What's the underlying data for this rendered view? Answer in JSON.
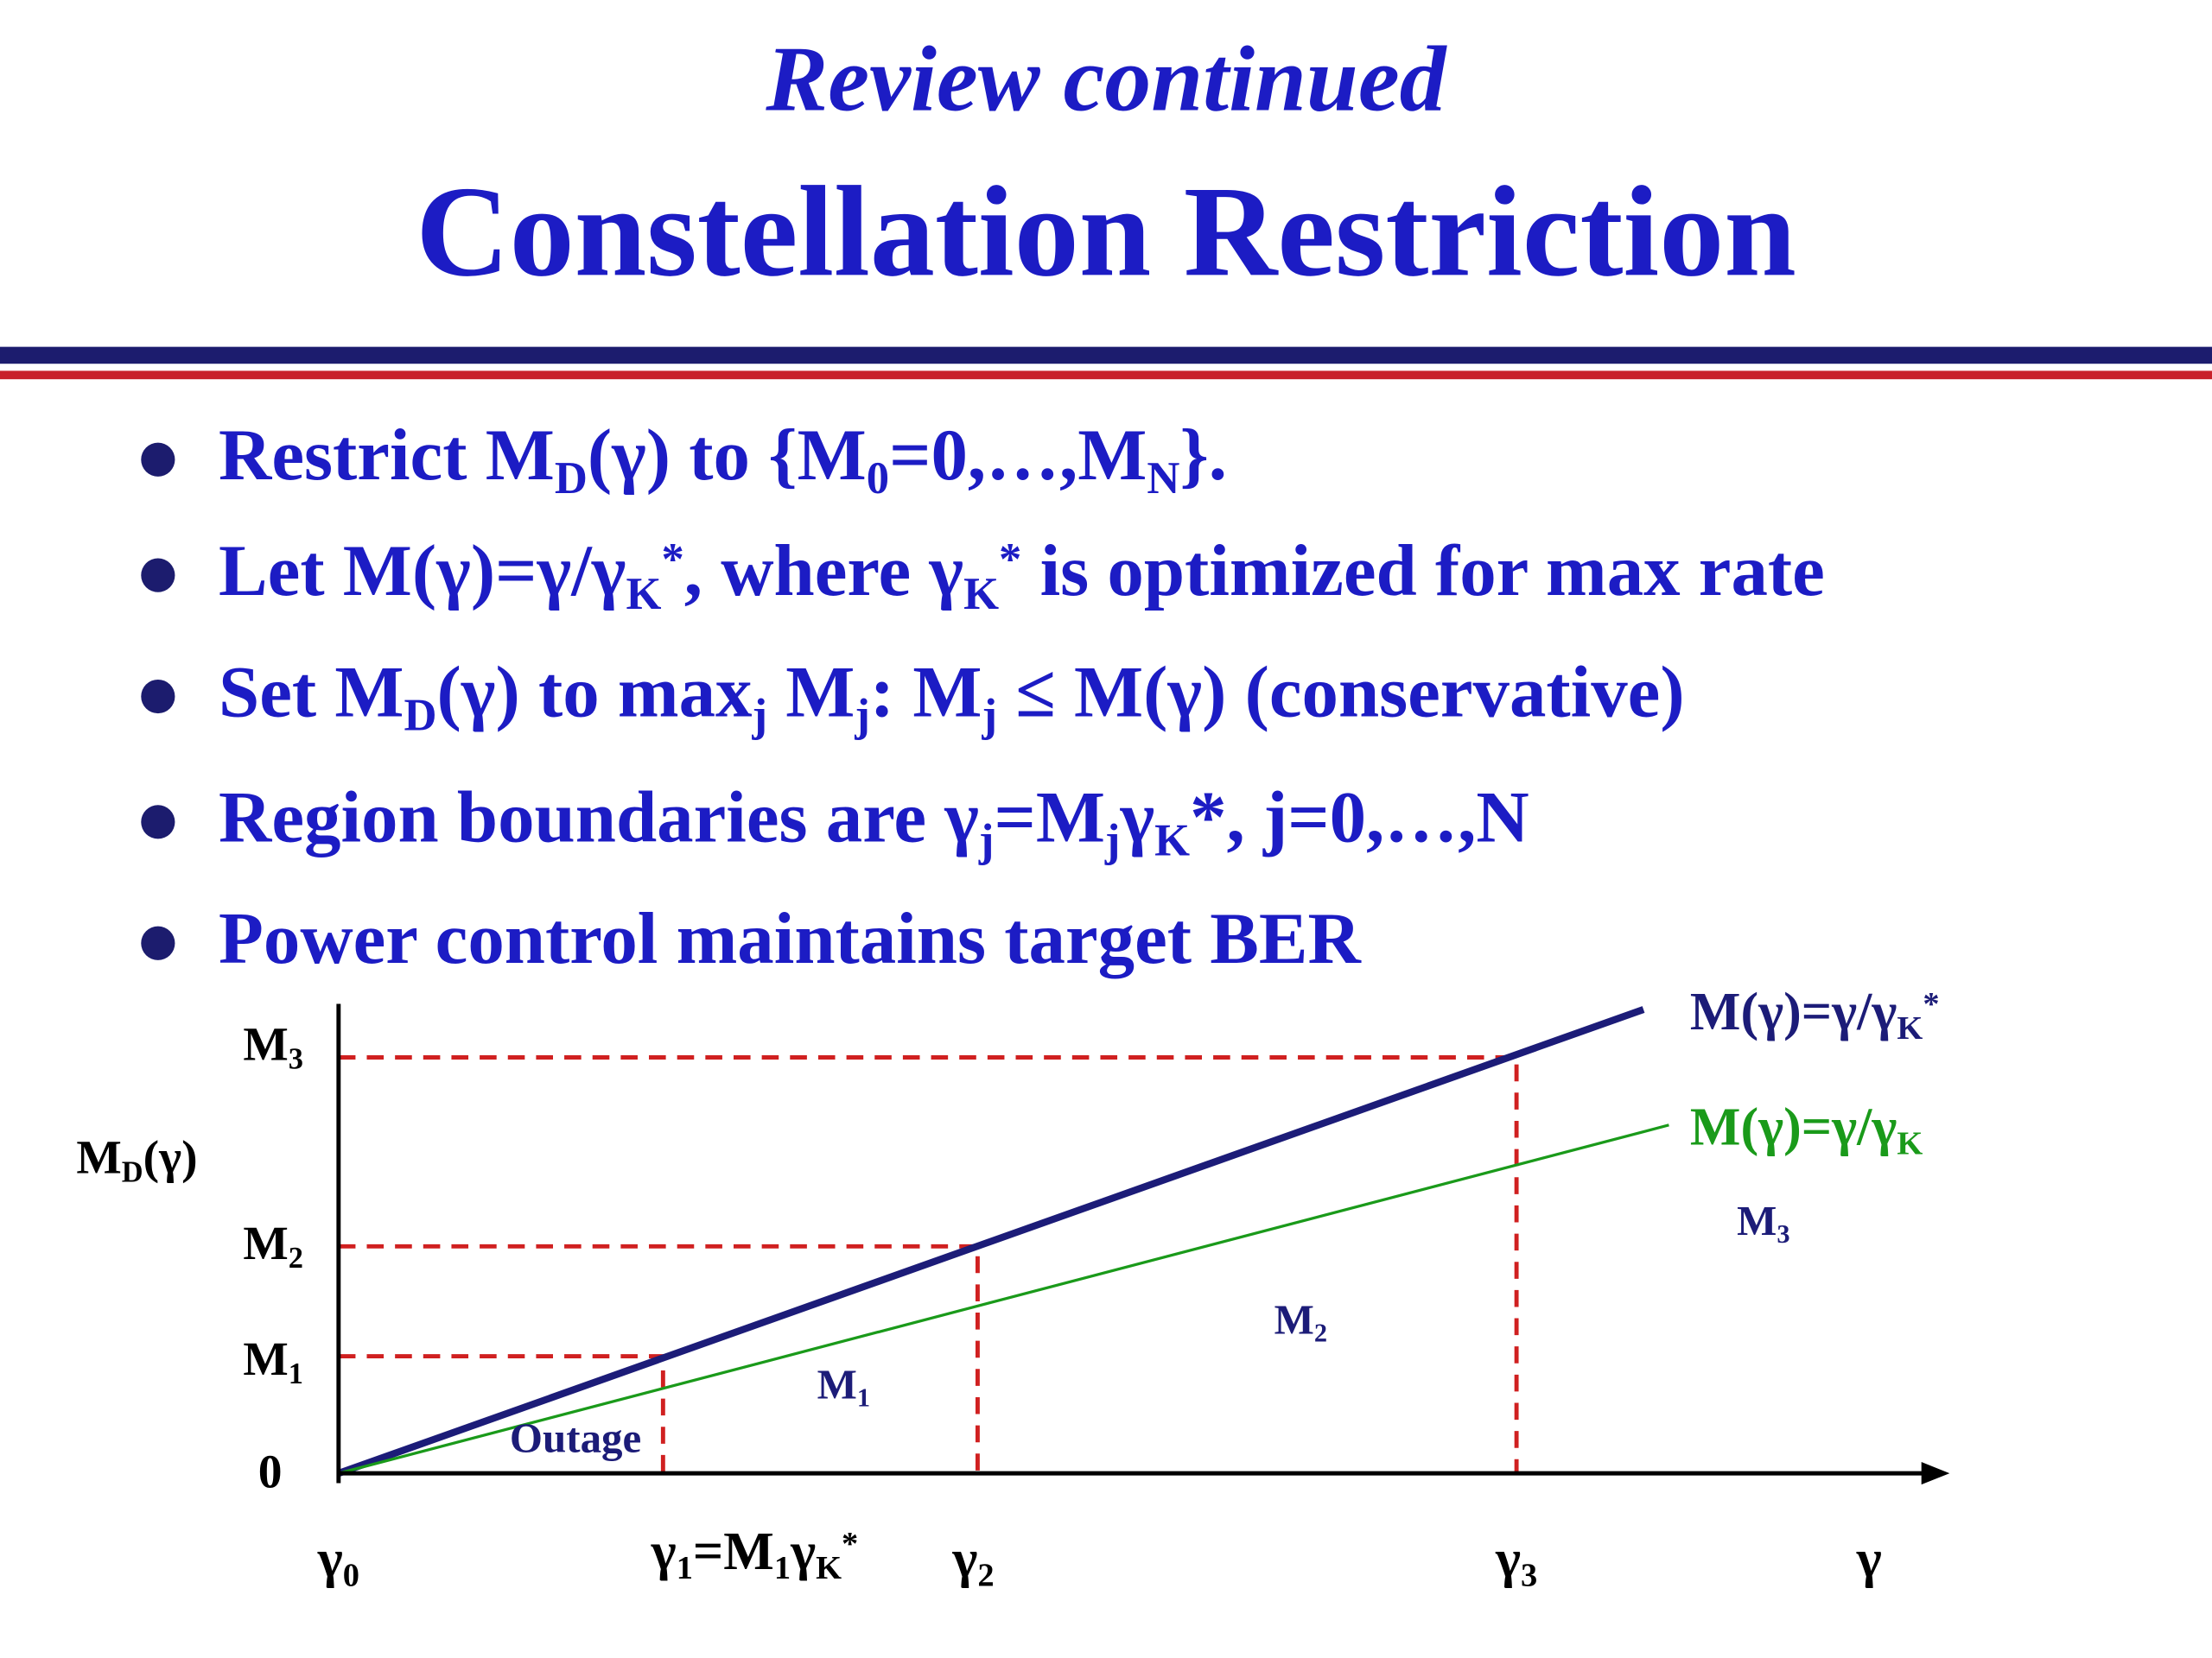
{
  "header": {
    "subtitle": "Review continued",
    "title": "Constellation Restriction"
  },
  "bullets": [
    [
      {
        "text": "Restrict M"
      },
      {
        "sub": "D"
      },
      {
        "text": "(γ) to {M"
      },
      {
        "sub": "0"
      },
      {
        "text": "=0,…,M"
      },
      {
        "sub": "N"
      },
      {
        "text": "}."
      }
    ],
    [
      {
        "text": "Let M(γ)=γ/γ"
      },
      {
        "sub": "K"
      },
      {
        "sup": "*"
      },
      {
        "text": ", where γ"
      },
      {
        "sub": "K"
      },
      {
        "sup": "*"
      },
      {
        "text": " is optimized for max rate"
      }
    ],
    [
      {
        "text": "Set M"
      },
      {
        "sub": "D"
      },
      {
        "text": "(γ) to max"
      },
      {
        "sub": "j"
      },
      {
        "text": " M"
      },
      {
        "sub": "j"
      },
      {
        "text": ": M"
      },
      {
        "sub": "j"
      },
      {
        "text": " ≤ M(γ) (conservative)"
      }
    ],
    [
      {
        "text": "Region boundaries are γ"
      },
      {
        "sub": "j"
      },
      {
        "text": "=M"
      },
      {
        "sub": "j"
      },
      {
        "text": "γ"
      },
      {
        "sub": "K"
      },
      {
        "text": "*, j=0,…,N"
      }
    ],
    [
      {
        "text": "Power control maintains target BER"
      }
    ]
  ],
  "diagram": {
    "y_labels": [
      [
        {
          "text": "M"
        },
        {
          "sub": "3"
        }
      ],
      [
        {
          "text": "M"
        },
        {
          "sub": "D"
        },
        {
          "text": "(γ)"
        }
      ],
      [
        {
          "text": "M"
        },
        {
          "sub": "2"
        }
      ],
      [
        {
          "text": "M"
        },
        {
          "sub": "1"
        }
      ],
      [
        {
          "text": "0"
        }
      ]
    ],
    "x_labels": [
      [
        {
          "text": "γ"
        },
        {
          "sub": "0"
        }
      ],
      [
        {
          "text": "γ"
        },
        {
          "sub": "1"
        },
        {
          "text": "=M"
        },
        {
          "sub": "1"
        },
        {
          "text": "γ"
        },
        {
          "sub": "K"
        },
        {
          "sup": "*"
        }
      ],
      [
        {
          "text": "γ"
        },
        {
          "sub": "2"
        }
      ],
      [
        {
          "text": "γ"
        },
        {
          "sub": "3"
        }
      ],
      [
        {
          "text": "γ"
        }
      ]
    ],
    "line_labels": [
      [
        {
          "text": "M(γ)=γ/γ"
        },
        {
          "sub": "K"
        },
        {
          "sup": "*"
        }
      ],
      [
        {
          "text": "M(γ)=γ/γ"
        },
        {
          "sub": "K"
        }
      ]
    ],
    "region_labels": [
      [
        {
          "text": "Outage"
        }
      ],
      [
        {
          "text": "M"
        },
        {
          "sub": "1"
        }
      ],
      [
        {
          "text": "M"
        },
        {
          "sub": "2"
        }
      ],
      [
        {
          "text": "M"
        },
        {
          "sub": "3"
        }
      ]
    ]
  }
}
